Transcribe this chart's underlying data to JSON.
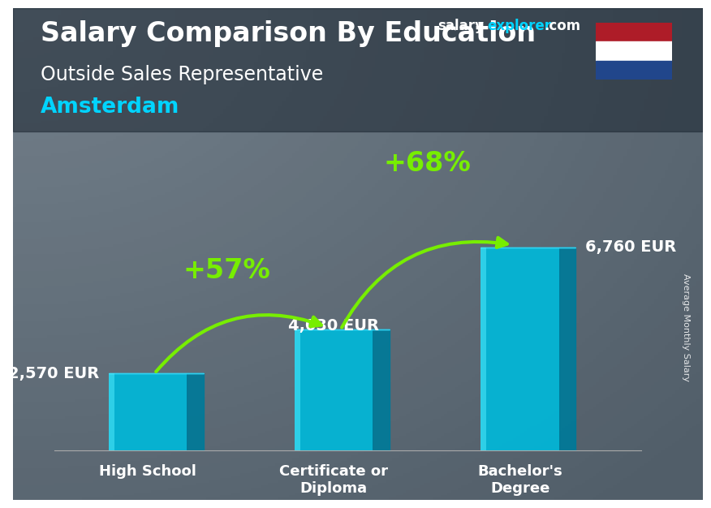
{
  "title_main": "Salary Comparison By Education",
  "title_sub": "Outside Sales Representative",
  "title_city": "Amsterdam",
  "ylabel": "Average Monthly Salary",
  "categories": [
    "High School",
    "Certificate or\nDiploma",
    "Bachelor's\nDegree"
  ],
  "values": [
    2570,
    4030,
    6760
  ],
  "value_labels": [
    "2,570 EUR",
    "4,030 EUR",
    "6,760 EUR"
  ],
  "pct_labels": [
    "+57%",
    "+68%"
  ],
  "bar_face_color": "#00b8d9",
  "bar_side_color": "#007a99",
  "bar_top_color": "#33d6f5",
  "bg_color": "#3a4a55",
  "text_color_white": "#ffffff",
  "text_color_city": "#00d4ff",
  "arrow_color": "#77ee00",
  "pct_color": "#77ee00",
  "ylim": [
    0,
    8500
  ],
  "bar_width": 0.42,
  "x_positions": [
    0.5,
    1.5,
    2.5
  ],
  "flag_red": "#ae1c28",
  "flag_white": "#ffffff",
  "flag_blue": "#21468b",
  "title_fontsize": 24,
  "sub_fontsize": 17,
  "city_fontsize": 19,
  "val_fontsize": 14,
  "pct_fontsize": 24,
  "cat_fontsize": 13,
  "watermark_fontsize": 12
}
